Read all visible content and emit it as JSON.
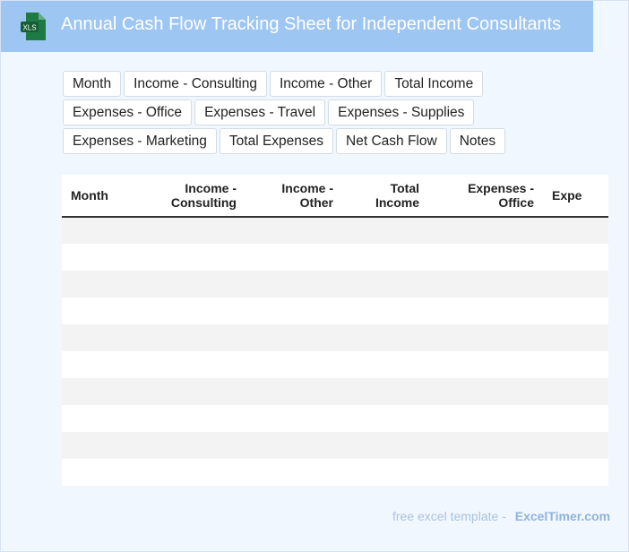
{
  "header": {
    "icon": "xls-file-icon",
    "icon_label": "XLS",
    "title": "Annual Cash Flow Tracking Sheet for Independent Consultants"
  },
  "columns": [
    "Month",
    "Income - Consulting",
    "Income - Other",
    "Total Income",
    "Expenses - Office",
    "Expenses - Travel",
    "Expenses - Supplies",
    "Expenses - Marketing",
    "Total Expenses",
    "Net Cash Flow",
    "Notes"
  ],
  "table": {
    "headers": [
      [
        "Month"
      ],
      [
        "Income -",
        "Consulting"
      ],
      [
        "Income -",
        "Other"
      ],
      [
        "Total",
        "Income"
      ],
      [
        "Expenses -",
        "Office"
      ],
      [
        "Expe"
      ]
    ]
  },
  "footer": {
    "prefix": "free excel template -",
    "brand": "ExcelTimer.com"
  },
  "colors": {
    "header_bg": "#9ec6f2",
    "page_bg": "#f1f7fe",
    "row_alt": "#f3f3f3",
    "icon_green": "#1e7a45"
  }
}
